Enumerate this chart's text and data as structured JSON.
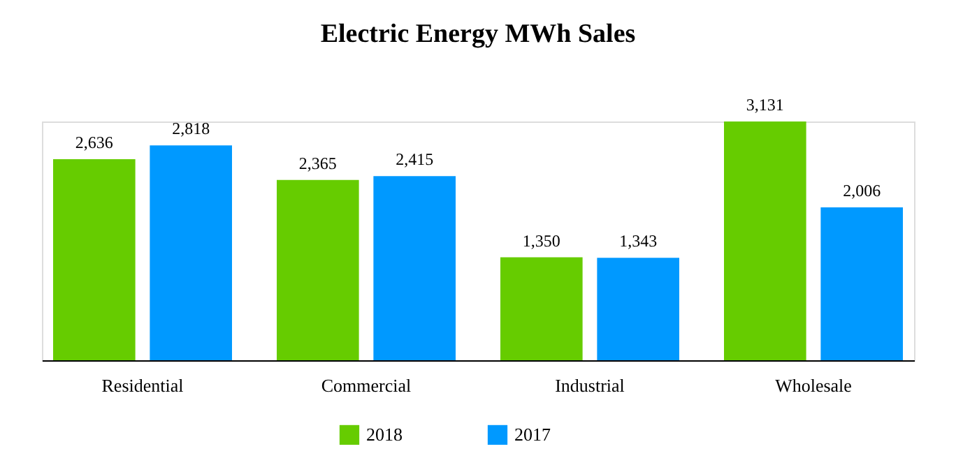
{
  "chart_data": {
    "type": "bar",
    "title": "Electric Energy MWh Sales",
    "categories": [
      "Residential",
      "Commercial",
      "Industrial",
      "Wholesale"
    ],
    "series": [
      {
        "name": "2018",
        "color": "#66cc00",
        "values": [
          2636,
          2365,
          1350,
          3131
        ],
        "value_labels": [
          "2,636",
          "2,365",
          "1,350",
          "3,131"
        ]
      },
      {
        "name": "2017",
        "color": "#0099ff",
        "values": [
          2818,
          2415,
          1343,
          2006
        ],
        "value_labels": [
          "2,818",
          "2,415",
          "1,343",
          "2,006"
        ]
      }
    ],
    "legend": "bottom",
    "grid": false,
    "tick_labels": "x"
  }
}
